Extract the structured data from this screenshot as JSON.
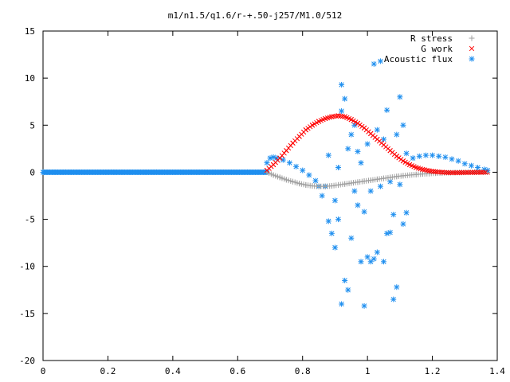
{
  "chart_data": {
    "type": "scatter",
    "title": "m1/n1.5/q1.6/r-+.50-j257/M1.0/512",
    "xlabel": "",
    "ylabel": "",
    "xlim": [
      0,
      1.4
    ],
    "ylim": [
      -20,
      15
    ],
    "grid": false,
    "legend_position": "top-right",
    "x_ticks": [
      "0",
      "0.2",
      "0.4",
      "0.6",
      "0.8",
      "1",
      "1.2",
      "1.4"
    ],
    "y_ticks": [
      "15",
      "10",
      "5",
      "0",
      "-5",
      "-10",
      "-15",
      "-20"
    ],
    "series": [
      {
        "name": "R stress",
        "marker": "plus",
        "color": "#a0a0a0",
        "points": [
          [
            0.69,
            0.0
          ],
          [
            0.71,
            -0.3
          ],
          [
            0.73,
            -0.55
          ],
          [
            0.75,
            -0.8
          ],
          [
            0.77,
            -1.0
          ],
          [
            0.79,
            -1.2
          ],
          [
            0.81,
            -1.35
          ],
          [
            0.83,
            -1.45
          ],
          [
            0.85,
            -1.5
          ],
          [
            0.87,
            -1.5
          ],
          [
            0.89,
            -1.45
          ],
          [
            0.91,
            -1.35
          ],
          [
            0.93,
            -1.25
          ],
          [
            0.95,
            -1.15
          ],
          [
            0.97,
            -1.05
          ],
          [
            0.99,
            -0.95
          ],
          [
            1.01,
            -0.85
          ],
          [
            1.03,
            -0.75
          ],
          [
            1.05,
            -0.65
          ],
          [
            1.07,
            -0.55
          ],
          [
            1.09,
            -0.45
          ],
          [
            1.11,
            -0.37
          ],
          [
            1.13,
            -0.3
          ],
          [
            1.15,
            -0.24
          ],
          [
            1.17,
            -0.18
          ],
          [
            1.19,
            -0.14
          ],
          [
            1.21,
            -0.1
          ],
          [
            1.23,
            -0.07
          ],
          [
            1.25,
            -0.05
          ],
          [
            1.27,
            -0.03
          ],
          [
            1.29,
            -0.02
          ],
          [
            1.31,
            -0.01
          ],
          [
            1.33,
            0.0
          ],
          [
            1.35,
            0.0
          ],
          [
            1.37,
            0.0
          ]
        ]
      },
      {
        "name": "G work",
        "marker": "cross",
        "color": "#ff0000",
        "points": [
          [
            0.69,
            0.2
          ],
          [
            0.71,
            0.8
          ],
          [
            0.73,
            1.5
          ],
          [
            0.75,
            2.3
          ],
          [
            0.77,
            3.1
          ],
          [
            0.79,
            3.8
          ],
          [
            0.81,
            4.5
          ],
          [
            0.83,
            5.0
          ],
          [
            0.85,
            5.4
          ],
          [
            0.87,
            5.7
          ],
          [
            0.89,
            5.9
          ],
          [
            0.91,
            6.0
          ],
          [
            0.93,
            5.9
          ],
          [
            0.95,
            5.6
          ],
          [
            0.97,
            5.2
          ],
          [
            0.99,
            4.7
          ],
          [
            1.01,
            4.1
          ],
          [
            1.03,
            3.5
          ],
          [
            1.05,
            2.9
          ],
          [
            1.07,
            2.3
          ],
          [
            1.09,
            1.7
          ],
          [
            1.11,
            1.2
          ],
          [
            1.13,
            0.8
          ],
          [
            1.15,
            0.5
          ],
          [
            1.17,
            0.3
          ],
          [
            1.19,
            0.15
          ],
          [
            1.21,
            0.05
          ],
          [
            1.23,
            0.0
          ],
          [
            1.25,
            -0.05
          ],
          [
            1.27,
            -0.05
          ],
          [
            1.29,
            -0.04
          ],
          [
            1.31,
            -0.03
          ],
          [
            1.33,
            -0.02
          ],
          [
            1.35,
            -0.01
          ],
          [
            1.37,
            0.0
          ]
        ]
      },
      {
        "name": "Acoustic flux",
        "marker": "star",
        "color": "#1f8fef",
        "points": [
          [
            0.69,
            1.0
          ],
          [
            0.7,
            1.5
          ],
          [
            0.71,
            1.6
          ],
          [
            0.72,
            1.5
          ],
          [
            0.74,
            1.3
          ],
          [
            0.76,
            1.0
          ],
          [
            0.78,
            0.6
          ],
          [
            0.8,
            0.2
          ],
          [
            0.82,
            -0.3
          ],
          [
            0.84,
            -0.9
          ],
          [
            0.85,
            -1.5
          ],
          [
            0.86,
            -2.5
          ],
          [
            0.87,
            -1.5
          ],
          [
            0.88,
            1.8
          ],
          [
            0.88,
            -5.2
          ],
          [
            0.89,
            -6.5
          ],
          [
            0.9,
            -3.0
          ],
          [
            0.9,
            -8.0
          ],
          [
            0.91,
            0.5
          ],
          [
            0.91,
            -5.0
          ],
          [
            0.92,
            6.5
          ],
          [
            0.92,
            -14.0
          ],
          [
            0.92,
            9.3
          ],
          [
            0.93,
            -11.5
          ],
          [
            0.93,
            7.8
          ],
          [
            0.94,
            -12.5
          ],
          [
            0.94,
            2.5
          ],
          [
            0.95,
            4.0
          ],
          [
            0.95,
            -7.0
          ],
          [
            0.96,
            5.0
          ],
          [
            0.96,
            -2.0
          ],
          [
            0.97,
            2.2
          ],
          [
            0.97,
            -3.5
          ],
          [
            0.98,
            -9.5
          ],
          [
            0.98,
            1.0
          ],
          [
            0.99,
            -14.2
          ],
          [
            0.99,
            -4.2
          ],
          [
            1.0,
            -9.0
          ],
          [
            1.0,
            3.0
          ],
          [
            1.01,
            -9.5
          ],
          [
            1.01,
            -2.0
          ],
          [
            1.02,
            11.5
          ],
          [
            1.02,
            -9.2
          ],
          [
            1.03,
            4.5
          ],
          [
            1.03,
            -8.5
          ],
          [
            1.04,
            -1.5
          ],
          [
            1.04,
            11.8
          ],
          [
            1.05,
            -9.5
          ],
          [
            1.05,
            3.5
          ],
          [
            1.06,
            -6.5
          ],
          [
            1.06,
            6.6
          ],
          [
            1.07,
            -6.4
          ],
          [
            1.07,
            -1.0
          ],
          [
            1.08,
            -4.5
          ],
          [
            1.08,
            -13.5
          ],
          [
            1.09,
            -12.2
          ],
          [
            1.09,
            4.0
          ],
          [
            1.1,
            -1.3
          ],
          [
            1.1,
            8.0
          ],
          [
            1.11,
            -5.5
          ],
          [
            1.11,
            5.0
          ],
          [
            1.12,
            2.0
          ],
          [
            1.12,
            -4.3
          ],
          [
            1.14,
            1.5
          ],
          [
            1.16,
            1.7
          ],
          [
            1.18,
            1.8
          ],
          [
            1.2,
            1.8
          ],
          [
            1.22,
            1.7
          ],
          [
            1.24,
            1.6
          ],
          [
            1.26,
            1.4
          ],
          [
            1.28,
            1.2
          ],
          [
            1.3,
            0.9
          ],
          [
            1.32,
            0.7
          ],
          [
            1.34,
            0.5
          ],
          [
            1.36,
            0.3
          ],
          [
            1.37,
            0.2
          ]
        ]
      }
    ]
  }
}
